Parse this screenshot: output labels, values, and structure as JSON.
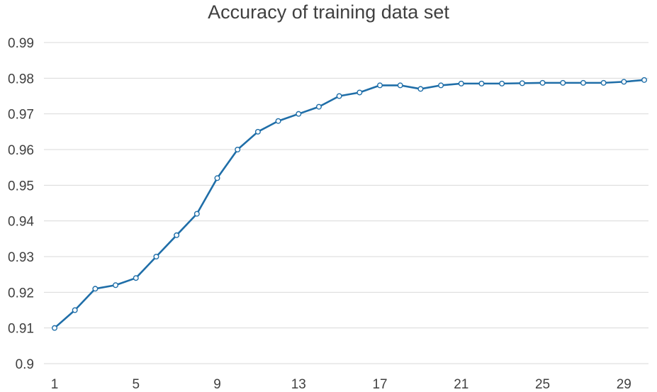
{
  "chart_data": {
    "type": "line",
    "title": "Accuracy of training data set",
    "xlabel": "",
    "ylabel": "",
    "x": [
      1,
      2,
      3,
      4,
      5,
      6,
      7,
      8,
      9,
      10,
      11,
      12,
      13,
      14,
      15,
      16,
      17,
      18,
      19,
      20,
      21,
      22,
      23,
      24,
      25,
      26,
      27,
      28,
      29,
      30
    ],
    "x_tick_labels": [
      "1",
      "5",
      "9",
      "13",
      "17",
      "21",
      "25",
      "29"
    ],
    "y_tick_labels": [
      "0.9",
      "0.91",
      "0.92",
      "0.93",
      "0.94",
      "0.95",
      "0.96",
      "0.97",
      "0.98",
      "0.99"
    ],
    "ylim": [
      0.9,
      0.99
    ],
    "grid": "horizontal",
    "legend": "none",
    "series": [
      {
        "values": [
          0.91,
          0.915,
          0.921,
          0.922,
          0.924,
          0.93,
          0.936,
          0.942,
          0.952,
          0.96,
          0.965,
          0.968,
          0.97,
          0.972,
          0.975,
          0.976,
          0.978,
          0.978,
          0.977,
          0.978,
          0.9785,
          0.9785,
          0.9785,
          0.9786,
          0.9787,
          0.9787,
          0.9787,
          0.9787,
          0.979,
          0.9795
        ],
        "color": "#1f6ea8"
      }
    ],
    "colors": {
      "line": "#1f6ea8",
      "grid": "#d9d9d9",
      "axis": "#d9d9d9",
      "text": "#404040"
    }
  }
}
